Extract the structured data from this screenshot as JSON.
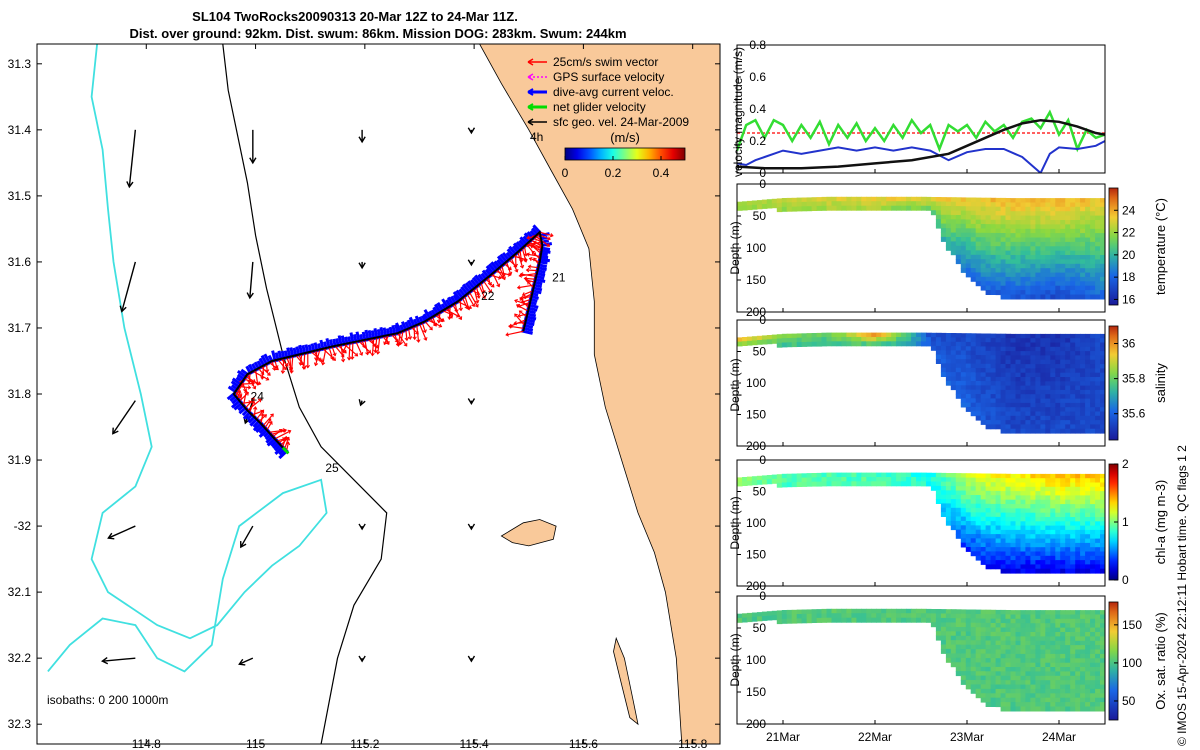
{
  "title": {
    "line1": "SL104 TwoRocks20090313 20-Mar 12Z to 24-Mar 11Z.",
    "line2": "Dist. over ground: 92km. Dist. swum: 86km. Mission DOG: 283km. Swum: 244km"
  },
  "credit": "© IMOS 15-Apr-2024 22:12:11 Hobart time. QC flags 1  2",
  "colors": {
    "swim": "#ff0000",
    "gps": "#ff00ff",
    "current": "#0000ff",
    "net": "#00dd00",
    "land": "#f9c99a",
    "isobath_shallow": "#40e0e0",
    "isobath_deep": "#000000",
    "velmag_current": "#2233cc",
    "velmag_net": "#33dd33",
    "velmag_geo": "#111111",
    "velmag_swim": "#ff0000"
  },
  "chart_data": [
    {
      "type": "scatter",
      "name": "track-map",
      "xlim": [
        114.6,
        115.85
      ],
      "ylim": [
        -32.33,
        -31.27
      ],
      "xticks": [
        114.8,
        115,
        115.2,
        115.4,
        115.6,
        115.8
      ],
      "xtick_labels": [
        "114.8",
        "115",
        "115.2",
        "115.4",
        "115.6",
        "115.8"
      ],
      "yticks": [
        -31.3,
        -31.4,
        -31.5,
        -31.6,
        -31.7,
        -31.8,
        -31.9,
        -32,
        -32.1,
        -32.2,
        -32.3
      ],
      "ytick_labels": [
        "31.3",
        "31.4",
        "31.5",
        "31.6",
        "31.7",
        "31.8",
        "31.9",
        "-32",
        "32.1",
        "32.2",
        "32.3"
      ],
      "legend": {
        "position": "top-right",
        "entries": [
          "25cm/s swim vector",
          "GPS surface velocity",
          "dive-avg current veloc.",
          "net glider velocity",
          "sfc geo. vel. 24-Mar-2009"
        ]
      },
      "time_marker_4h": "4h",
      "speed_colorbar": {
        "title": "(m/s)",
        "range": [
          0,
          0.5
        ],
        "ticks": [
          0,
          0.2,
          0.4
        ],
        "tick_labels": [
          "0",
          "0.2",
          "0.4"
        ]
      },
      "isobaths_label": "isobaths: 0   200  1000m",
      "track": [
        [
          115.49,
          -31.705
        ],
        [
          115.5,
          -31.67
        ],
        [
          115.51,
          -31.635
        ],
        [
          115.52,
          -31.6
        ],
        [
          115.525,
          -31.575
        ],
        [
          115.52,
          -31.555
        ],
        [
          115.48,
          -31.585
        ],
        [
          115.43,
          -31.62
        ],
        [
          115.37,
          -31.66
        ],
        [
          115.31,
          -31.69
        ],
        [
          115.26,
          -31.708
        ],
        [
          115.2,
          -31.718
        ],
        [
          115.14,
          -31.728
        ],
        [
          115.09,
          -31.738
        ],
        [
          115.03,
          -31.75
        ],
        [
          114.985,
          -31.77
        ],
        [
          114.96,
          -31.8
        ],
        [
          114.985,
          -31.825
        ],
        [
          115.01,
          -31.845
        ],
        [
          115.035,
          -31.868
        ],
        [
          115.06,
          -31.89
        ]
      ],
      "track_day_labels": [
        {
          "label": "21",
          "lon": 115.555,
          "lat": -31.63
        },
        {
          "label": "22",
          "lon": 115.425,
          "lat": -31.658
        },
        {
          "label": "24",
          "lon": 115.003,
          "lat": -31.81
        },
        {
          "label": "25",
          "lon": 115.14,
          "lat": -31.918
        }
      ],
      "geo_vectors": [
        {
          "lon": 114.78,
          "lat": -31.4,
          "u": -0.04,
          "v": -0.38
        },
        {
          "lon": 114.78,
          "lat": -31.6,
          "u": -0.09,
          "v": -0.33
        },
        {
          "lon": 114.78,
          "lat": -31.81,
          "u": -0.15,
          "v": -0.22
        },
        {
          "lon": 114.78,
          "lat": -32.0,
          "u": -0.18,
          "v": -0.08
        },
        {
          "lon": 114.78,
          "lat": -32.2,
          "u": -0.22,
          "v": -0.02
        },
        {
          "lon": 114.995,
          "lat": -31.4,
          "u": 0.0,
          "v": -0.22
        },
        {
          "lon": 114.995,
          "lat": -31.6,
          "u": -0.02,
          "v": -0.24
        },
        {
          "lon": 114.995,
          "lat": -31.81,
          "u": -0.05,
          "v": -0.15
        },
        {
          "lon": 114.995,
          "lat": -32.0,
          "u": -0.08,
          "v": -0.14
        },
        {
          "lon": 114.995,
          "lat": -32.2,
          "u": -0.09,
          "v": -0.04
        },
        {
          "lon": 115.195,
          "lat": -31.4,
          "u": 0.0,
          "v": -0.08
        },
        {
          "lon": 115.195,
          "lat": -31.6,
          "u": 0.0,
          "v": -0.04
        },
        {
          "lon": 115.195,
          "lat": -31.81,
          "u": -0.01,
          "v": -0.03
        },
        {
          "lon": 115.195,
          "lat": -32.0,
          "u": 0.0,
          "v": -0.02
        },
        {
          "lon": 115.195,
          "lat": -32.2,
          "u": 0.0,
          "v": -0.02
        },
        {
          "lon": 115.395,
          "lat": -31.4,
          "u": 0.0,
          "v": -0.02
        },
        {
          "lon": 115.395,
          "lat": -31.6,
          "u": 0.0,
          "v": -0.02
        },
        {
          "lon": 115.395,
          "lat": -31.81,
          "u": 0.0,
          "v": -0.02
        },
        {
          "lon": 115.395,
          "lat": -32.0,
          "u": 0.0,
          "v": -0.02
        },
        {
          "lon": 115.395,
          "lat": -32.2,
          "u": 0.0,
          "v": -0.02
        }
      ],
      "coastline": [
        [
          115.41,
          -31.27
        ],
        [
          115.45,
          -31.33
        ],
        [
          115.5,
          -31.4
        ],
        [
          115.54,
          -31.46
        ],
        [
          115.58,
          -31.52
        ],
        [
          115.61,
          -31.58
        ],
        [
          115.62,
          -31.66
        ],
        [
          115.62,
          -31.74
        ],
        [
          115.64,
          -31.82
        ],
        [
          115.67,
          -31.9
        ],
        [
          115.7,
          -31.98
        ],
        [
          115.73,
          -32.04
        ],
        [
          115.75,
          -32.1
        ],
        [
          115.77,
          -32.2
        ],
        [
          115.78,
          -32.33
        ]
      ],
      "rottnest_island": [
        [
          115.45,
          -32.015
        ],
        [
          115.49,
          -31.995
        ],
        [
          115.52,
          -31.99
        ],
        [
          115.55,
          -32.0
        ],
        [
          115.545,
          -32.02
        ],
        [
          115.5,
          -32.03
        ],
        [
          115.47,
          -32.025
        ]
      ],
      "garden_island": [
        [
          115.66,
          -32.17
        ],
        [
          115.675,
          -32.2
        ],
        [
          115.69,
          -32.26
        ],
        [
          115.7,
          -32.3
        ],
        [
          115.685,
          -32.29
        ],
        [
          115.67,
          -32.24
        ],
        [
          115.655,
          -32.19
        ]
      ],
      "isobath_200": [
        [
          114.94,
          -31.27
        ],
        [
          114.95,
          -31.34
        ],
        [
          114.97,
          -31.42
        ],
        [
          114.985,
          -31.48
        ],
        [
          115.0,
          -31.56
        ],
        [
          115.02,
          -31.64
        ],
        [
          115.05,
          -31.74
        ],
        [
          115.08,
          -31.82
        ],
        [
          115.12,
          -31.88
        ],
        [
          115.18,
          -31.93
        ],
        [
          115.24,
          -31.98
        ],
        [
          115.23,
          -32.05
        ],
        [
          115.18,
          -32.12
        ],
        [
          115.15,
          -32.2
        ],
        [
          115.12,
          -32.33
        ]
      ],
      "isobath_1000": [
        [
          114.71,
          -31.27
        ],
        [
          114.7,
          -31.35
        ],
        [
          114.72,
          -31.43
        ],
        [
          114.73,
          -31.52
        ],
        [
          114.74,
          -31.6
        ],
        [
          114.76,
          -31.7
        ],
        [
          114.79,
          -31.8
        ],
        [
          114.81,
          -31.88
        ],
        [
          114.78,
          -31.94
        ],
        [
          114.72,
          -31.98
        ],
        [
          114.7,
          -32.05
        ],
        [
          114.73,
          -32.1
        ],
        [
          114.82,
          -32.15
        ],
        [
          114.88,
          -32.17
        ],
        [
          114.93,
          -32.15
        ],
        [
          114.98,
          -32.1
        ],
        [
          115.03,
          -32.06
        ],
        [
          115.08,
          -32.03
        ],
        [
          115.13,
          -31.98
        ],
        [
          115.12,
          -31.93
        ],
        [
          115.05,
          -31.95
        ],
        [
          114.97,
          -32.0
        ],
        [
          114.94,
          -32.08
        ],
        [
          114.92,
          -32.18
        ],
        [
          114.87,
          -32.22
        ],
        [
          114.82,
          -32.2
        ],
        [
          114.78,
          -32.15
        ],
        [
          114.72,
          -32.14
        ],
        [
          114.66,
          -32.18
        ],
        [
          114.62,
          -32.22
        ]
      ]
    },
    {
      "type": "line",
      "name": "velocity-magnitude",
      "ylabel": "velocity magnitude (m/s)",
      "ylim": [
        0,
        0.8
      ],
      "yticks": [
        0,
        0.2,
        0.4,
        0.6,
        0.8
      ],
      "ytick_labels": [
        "0",
        "0.2",
        "0.4",
        "0.6",
        "0.8"
      ],
      "xlim": [
        20.5,
        24.5
      ],
      "series": [
        {
          "name": "swim",
          "x": [
            20.5,
            24.5
          ],
          "values": [
            0.25,
            0.25
          ]
        },
        {
          "name": "net",
          "x": [
            20.5,
            20.6,
            20.7,
            20.8,
            20.9,
            21.0,
            21.1,
            21.2,
            21.3,
            21.4,
            21.5,
            21.6,
            21.7,
            21.8,
            21.9,
            22.0,
            22.1,
            22.2,
            22.3,
            22.4,
            22.5,
            22.6,
            22.7,
            22.8,
            22.9,
            23.0,
            23.1,
            23.2,
            23.3,
            23.4,
            23.5,
            23.6,
            23.7,
            23.8,
            23.9,
            24.0,
            24.1,
            24.2,
            24.3,
            24.4,
            24.5
          ],
          "values": [
            0.14,
            0.3,
            0.33,
            0.22,
            0.33,
            0.3,
            0.2,
            0.3,
            0.22,
            0.32,
            0.18,
            0.3,
            0.22,
            0.31,
            0.2,
            0.28,
            0.2,
            0.3,
            0.22,
            0.33,
            0.25,
            0.3,
            0.15,
            0.3,
            0.26,
            0.3,
            0.22,
            0.32,
            0.26,
            0.3,
            0.22,
            0.32,
            0.34,
            0.28,
            0.38,
            0.24,
            0.33,
            0.15,
            0.27,
            0.22,
            0.24
          ]
        },
        {
          "name": "current",
          "x": [
            20.5,
            20.6,
            20.7,
            20.8,
            21.0,
            21.2,
            21.4,
            21.6,
            21.8,
            22.0,
            22.2,
            22.4,
            22.6,
            22.8,
            23.0,
            23.2,
            23.4,
            23.6,
            23.7,
            23.8,
            23.9,
            24.0,
            24.2,
            24.4,
            24.5
          ],
          "values": [
            0.06,
            0.05,
            0.08,
            0.1,
            0.14,
            0.12,
            0.14,
            0.16,
            0.14,
            0.16,
            0.14,
            0.16,
            0.14,
            0.08,
            0.13,
            0.15,
            0.15,
            0.1,
            0.05,
            0.0,
            0.12,
            0.16,
            0.15,
            0.17,
            0.2
          ]
        },
        {
          "name": "geo",
          "x": [
            20.5,
            20.8,
            21.2,
            21.6,
            22.0,
            22.4,
            22.8,
            23.0,
            23.2,
            23.4,
            23.6,
            23.8,
            24.0,
            24.2,
            24.4,
            24.5
          ],
          "values": [
            0.04,
            0.03,
            0.03,
            0.04,
            0.06,
            0.08,
            0.12,
            0.17,
            0.22,
            0.27,
            0.31,
            0.33,
            0.32,
            0.29,
            0.25,
            0.24
          ]
        }
      ]
    },
    {
      "type": "heatmap",
      "name": "temperature-section",
      "ylabel": "Depth (m)",
      "yticks": [
        0,
        50,
        100,
        150,
        200
      ],
      "ytick_labels": [
        "0",
        "50",
        "100",
        "150",
        "200"
      ],
      "colorbar_label": "temperature (°C)",
      "colorbar_range": [
        15.5,
        26
      ],
      "colorbar_ticks": [
        16,
        18,
        20,
        22,
        24
      ],
      "colorbar_tick_labels": [
        "16",
        "18",
        "20",
        "22",
        "24"
      ],
      "value_profile": {
        "x": [
          20.5,
          21.0,
          21.5,
          22.0,
          22.6,
          23.0,
          23.5,
          24.0,
          24.5
        ],
        "surface": [
          22.5,
          22.5,
          23.0,
          23.5,
          23.5,
          23.5,
          24.0,
          24.0,
          23.5
        ],
        "deep": [
          22.0,
          22.0,
          22.0,
          22.0,
          21.0,
          18.0,
          17.5,
          17.0,
          18.0
        ]
      }
    },
    {
      "type": "heatmap",
      "name": "salinity-section",
      "ylabel": "Depth (m)",
      "yticks": [
        0,
        50,
        100,
        150,
        200
      ],
      "ytick_labels": [
        "0",
        "50",
        "100",
        "150",
        "200"
      ],
      "colorbar_label": "salinity",
      "colorbar_range": [
        35.45,
        36.1
      ],
      "colorbar_ticks": [
        35.6,
        35.8,
        36
      ],
      "colorbar_tick_labels": [
        "35.6",
        "35.8",
        "36"
      ],
      "value_profile": {
        "x": [
          20.5,
          21.0,
          21.5,
          22.0,
          22.4,
          22.6,
          23.0,
          23.5,
          24.0,
          24.5
        ],
        "surface": [
          36.0,
          35.85,
          35.8,
          36.05,
          35.75,
          35.55,
          35.55,
          35.5,
          35.5,
          35.55
        ],
        "deep": [
          35.8,
          35.75,
          35.75,
          35.75,
          35.7,
          35.6,
          35.6,
          35.55,
          35.55,
          35.55
        ]
      }
    },
    {
      "type": "heatmap",
      "name": "chlorophyll-section",
      "ylabel": "Depth (m)",
      "yticks": [
        0,
        50,
        100,
        150,
        200
      ],
      "ytick_labels": [
        "0",
        "50",
        "100",
        "150",
        "200"
      ],
      "colorbar_label": "chl-a (mg m-3)",
      "colorbar_range": [
        0,
        2
      ],
      "colorbar_ticks": [
        0,
        1,
        2
      ],
      "colorbar_tick_labels": [
        "0",
        "1",
        "2"
      ],
      "value_profile": {
        "x": [
          20.5,
          21.0,
          21.5,
          22.0,
          22.6,
          23.0,
          23.5,
          24.0,
          24.5
        ],
        "surface": [
          1.1,
          0.9,
          0.9,
          0.9,
          0.8,
          1.2,
          1.3,
          1.4,
          1.4
        ],
        "deep": [
          1.0,
          0.9,
          0.9,
          0.9,
          0.8,
          0.3,
          0.2,
          0.2,
          0.2
        ]
      }
    },
    {
      "type": "heatmap",
      "name": "oxygen-section",
      "ylabel": "Depth (m)",
      "yticks": [
        0,
        50,
        100,
        150,
        200
      ],
      "ytick_labels": [
        "0",
        "50",
        "100",
        "150",
        "200"
      ],
      "colorbar_label": "Ox. sat. ratio (%)",
      "colorbar_range": [
        25,
        180
      ],
      "colorbar_ticks": [
        50,
        100,
        150
      ],
      "colorbar_tick_labels": [
        "50",
        "100",
        "150"
      ],
      "value_profile": {
        "x": [
          20.5,
          24.5
        ],
        "surface": [
          103,
          103
        ],
        "deep": [
          102,
          102
        ]
      },
      "xticks": [
        21,
        22,
        23,
        24
      ],
      "xtick_labels": [
        "21Mar",
        "22Mar",
        "23Mar",
        "24Mar"
      ]
    }
  ],
  "section_bottom": {
    "x": [
      20.5,
      21.5,
      22.5,
      22.6,
      22.75,
      22.9,
      23.0,
      23.1,
      23.25,
      23.5,
      24.0,
      24.5
    ],
    "depth": [
      0,
      0,
      0,
      35,
      90,
      125,
      145,
      160,
      172,
      180,
      180,
      180
    ]
  },
  "section_top": {
    "x": [
      20.5,
      21.0,
      21.5,
      22.0,
      22.5,
      23.0,
      23.5,
      24.0,
      24.5
    ],
    "depth": [
      28,
      22,
      20,
      20,
      20,
      21,
      22,
      22,
      22
    ]
  }
}
